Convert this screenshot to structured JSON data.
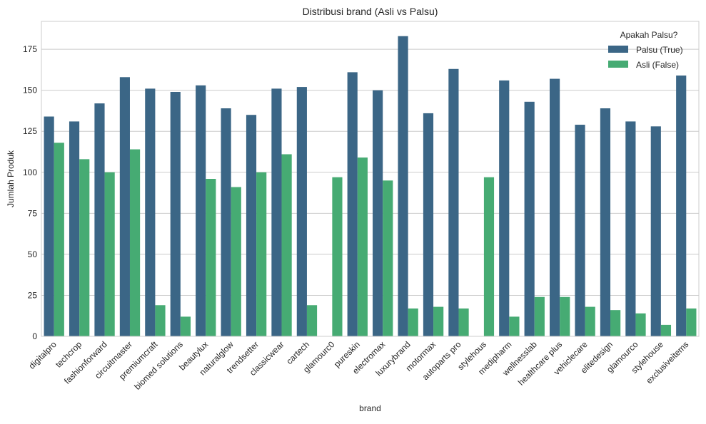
{
  "chart_data": {
    "type": "bar",
    "title": "Distribusi brand (Asli vs Palsu)",
    "xlabel": "brand",
    "ylabel": "Jumlah Produk",
    "ylim": [
      0,
      192
    ],
    "yticks": [
      0,
      25,
      50,
      75,
      100,
      125,
      150,
      175
    ],
    "grid": true,
    "legend": {
      "title": "Apakah Palsu?",
      "placement": "top-right"
    },
    "categories": [
      "digitalpro",
      "techcrop",
      "fashionforward",
      "circuitmaster",
      "premiumcraft",
      "biomed solutions",
      "beautylux",
      "naturalglow",
      "trendsetter",
      "classicwear",
      "cartech",
      "glamourc0",
      "pureskin",
      "electromax",
      "luxurybrand",
      "motormax",
      "autoparts pro",
      "stylehous",
      "medipharm",
      "wellnesslab",
      "healthcare plus",
      "vehiclecare",
      "elitedesign",
      "glamourco",
      "stylehouse",
      "exclusiveitems"
    ],
    "series": [
      {
        "name": "Palsu (True)",
        "color": "#3b6686",
        "values": [
          134,
          131,
          142,
          158,
          151,
          149,
          153,
          139,
          135,
          151,
          152,
          null,
          161,
          150,
          183,
          136,
          163,
          null,
          156,
          143,
          157,
          129,
          139,
          131,
          128,
          159
        ]
      },
      {
        "name": "Asli (False)",
        "color": "#46ab73",
        "values": [
          118,
          108,
          100,
          114,
          19,
          12,
          96,
          91,
          100,
          111,
          19,
          97,
          109,
          95,
          17,
          18,
          17,
          97,
          12,
          24,
          24,
          18,
          16,
          14,
          7,
          17
        ]
      }
    ]
  }
}
